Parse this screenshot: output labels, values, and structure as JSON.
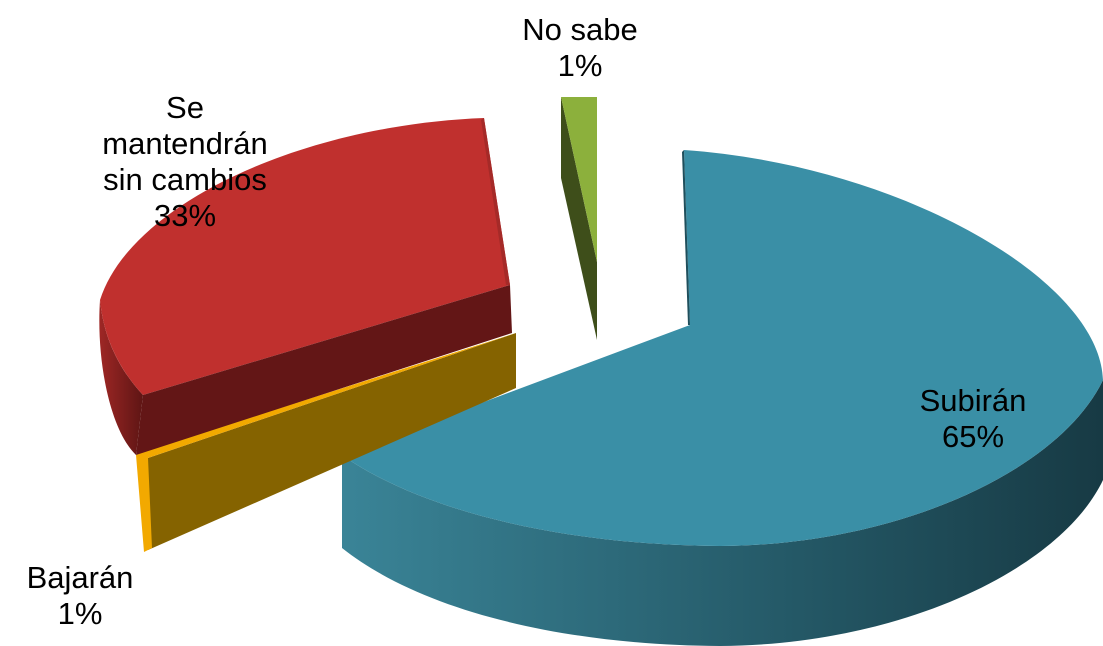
{
  "chart_data": {
    "type": "pie",
    "title": "",
    "slices": [
      {
        "category": "Subirán",
        "value": 65,
        "value_label": "65%",
        "color": "#3A8FA6",
        "side_color": "#255A68"
      },
      {
        "category": "Bajarán",
        "value": 1,
        "value_label": "1%",
        "color": "#F2A900",
        "side_color": "#856300"
      },
      {
        "category": "Se mantendrán sin cambios",
        "value": 33,
        "value_label": "33%",
        "color": "#C0302E",
        "side_color": "#6A1816"
      },
      {
        "category": "No sabe",
        "value": 1,
        "value_label": "1%",
        "color": "#8CB03C",
        "side_color": "#3E4E1A"
      }
    ],
    "style": "3d-exploded"
  },
  "labels": {
    "subiran": {
      "lines": [
        "Subirán"
      ],
      "pct": "65%"
    },
    "mantendran": {
      "lines": [
        "Se",
        "mantendrán",
        "sin cambios"
      ],
      "pct": "33%"
    },
    "nosabe": {
      "lines": [
        "No sabe"
      ],
      "pct": "1%"
    },
    "bajaran": {
      "lines": [
        "Bajarán"
      ],
      "pct": "1%"
    }
  }
}
